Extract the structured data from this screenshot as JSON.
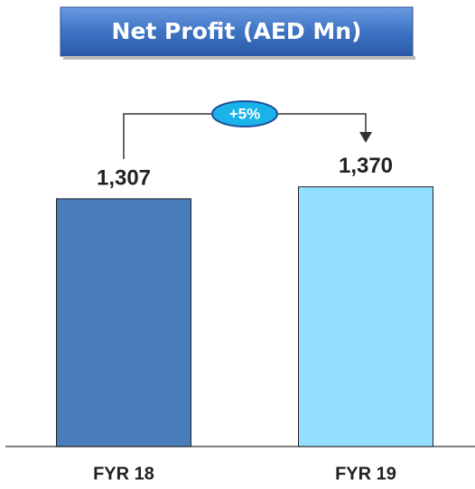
{
  "chart_data": {
    "type": "bar",
    "title": "Net Profit (AED Mn)",
    "categories": [
      "FYR 18",
      "FYR 19"
    ],
    "values": [
      1307,
      1370
    ],
    "value_labels": [
      "1,307",
      "1,370"
    ],
    "colors": [
      "#4a7ebb",
      "#93dfff"
    ],
    "annotation": "+5%"
  }
}
